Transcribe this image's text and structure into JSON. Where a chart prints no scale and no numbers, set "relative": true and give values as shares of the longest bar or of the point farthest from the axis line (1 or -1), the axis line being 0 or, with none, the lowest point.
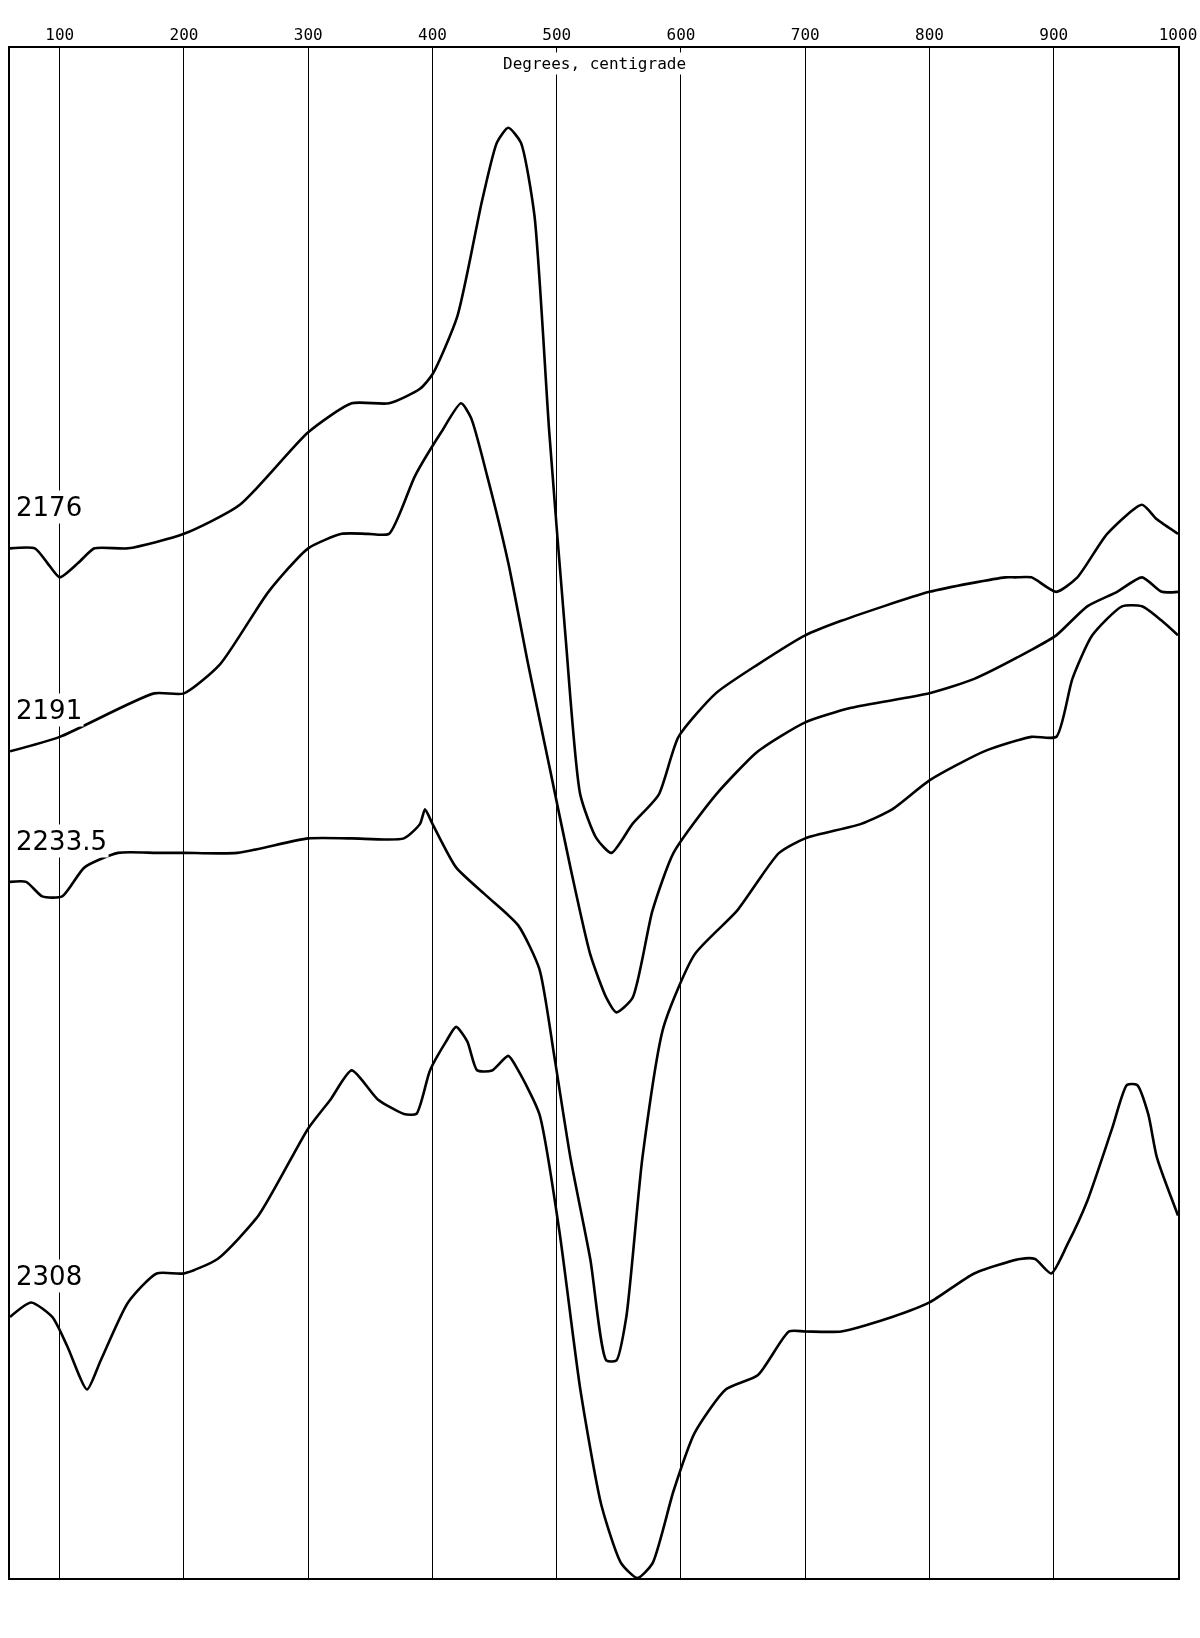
{
  "chart_data": {
    "type": "line",
    "xlabel": "Degrees, centigrade",
    "relative": true,
    "xlim": [
      60,
      1000
    ],
    "xticks": [
      100,
      200,
      300,
      400,
      500,
      600,
      700,
      800,
      900,
      1000
    ],
    "grid": "x",
    "legend": false,
    "marker": "none",
    "line_style": "solid",
    "series": [
      {
        "name": "2176",
        "color": "#000000",
        "x": [
          60,
          80,
          90,
          100,
          115,
          128,
          155,
          200,
          245,
          300,
          335,
          365,
          390,
          400,
          420,
          440,
          452,
          461,
          471,
          482,
          494,
          507,
          519,
          532,
          544,
          561,
          582,
          598,
          628,
          662,
          700,
          729,
          800,
          861,
          869,
          882,
          902,
          919,
          943,
          971,
          983,
          1000
        ],
        "values": [
          0.71,
          0.71,
          0.7,
          0.69,
          0.7,
          0.71,
          0.71,
          0.72,
          0.74,
          0.79,
          0.81,
          0.81,
          0.82,
          0.83,
          0.87,
          0.95,
          0.99,
          1.0,
          0.99,
          0.94,
          0.79,
          0.65,
          0.54,
          0.51,
          0.5,
          0.52,
          0.54,
          0.58,
          0.61,
          0.63,
          0.65,
          0.66,
          0.68,
          0.69,
          0.69,
          0.69,
          0.68,
          0.69,
          0.72,
          0.74,
          0.73,
          0.72
        ]
      },
      {
        "name": "2191",
        "color": "#000000",
        "x": [
          60,
          100,
          176,
          200,
          229,
          268,
          300,
          327,
          348,
          365,
          386,
          407,
          423,
          431,
          444,
          461,
          477,
          494,
          511,
          527,
          540,
          548,
          561,
          577,
          594,
          628,
          662,
          700,
          737,
          800,
          836,
          882,
          902,
          927,
          951,
          971,
          987,
          1000
        ],
        "values": [
          0.57,
          0.58,
          0.61,
          0.61,
          0.63,
          0.68,
          0.71,
          0.72,
          0.72,
          0.72,
          0.76,
          0.79,
          0.81,
          0.8,
          0.76,
          0.7,
          0.63,
          0.56,
          0.49,
          0.43,
          0.4,
          0.39,
          0.4,
          0.46,
          0.5,
          0.54,
          0.57,
          0.59,
          0.6,
          0.61,
          0.62,
          0.64,
          0.65,
          0.67,
          0.68,
          0.69,
          0.68,
          0.68
        ]
      },
      {
        "name": "2233.5",
        "color": "#000000",
        "x": [
          60,
          73,
          86,
          102,
          120,
          147,
          178,
          200,
          243,
          300,
          335,
          377,
          390,
          394,
          400,
          419,
          444,
          469,
          486,
          498,
          511,
          527,
          540,
          548,
          556,
          569,
          586,
          611,
          645,
          679,
          700,
          745,
          770,
          800,
          844,
          882,
          902,
          915,
          931,
          955,
          971,
          987,
          1000
        ],
        "values": [
          0.48,
          0.48,
          0.47,
          0.47,
          0.49,
          0.5,
          0.5,
          0.5,
          0.5,
          0.51,
          0.51,
          0.51,
          0.52,
          0.53,
          0.52,
          0.49,
          0.47,
          0.45,
          0.42,
          0.36,
          0.29,
          0.22,
          0.15,
          0.15,
          0.18,
          0.29,
          0.38,
          0.43,
          0.46,
          0.5,
          0.51,
          0.52,
          0.53,
          0.55,
          0.57,
          0.58,
          0.58,
          0.62,
          0.65,
          0.67,
          0.67,
          0.66,
          0.65
        ]
      },
      {
        "name": "2308",
        "color": "#000000",
        "x": [
          60,
          77,
          94,
          106,
          122,
          133,
          155,
          178,
          200,
          227,
          260,
          300,
          318,
          335,
          356,
          377,
          387,
          398,
          411,
          419,
          428,
          436,
          448,
          461,
          469,
          486,
          502,
          519,
          536,
          552,
          565,
          577,
          594,
          611,
          636,
          662,
          687,
          700,
          729,
          770,
          800,
          836,
          873,
          885,
          898,
          911,
          927,
          947,
          959,
          967,
          976,
          983,
          1000
        ],
        "values": [
          0.18,
          0.19,
          0.18,
          0.16,
          0.13,
          0.15,
          0.19,
          0.21,
          0.21,
          0.22,
          0.25,
          0.31,
          0.33,
          0.35,
          0.33,
          0.32,
          0.32,
          0.35,
          0.37,
          0.38,
          0.37,
          0.35,
          0.35,
          0.36,
          0.35,
          0.32,
          0.24,
          0.13,
          0.05,
          0.01,
          0,
          0.01,
          0.06,
          0.1,
          0.13,
          0.14,
          0.17,
          0.17,
          0.17,
          0.18,
          0.19,
          0.21,
          0.22,
          0.22,
          0.21,
          0.23,
          0.26,
          0.31,
          0.34,
          0.34,
          0.32,
          0.29,
          0.25
        ]
      }
    ]
  }
}
